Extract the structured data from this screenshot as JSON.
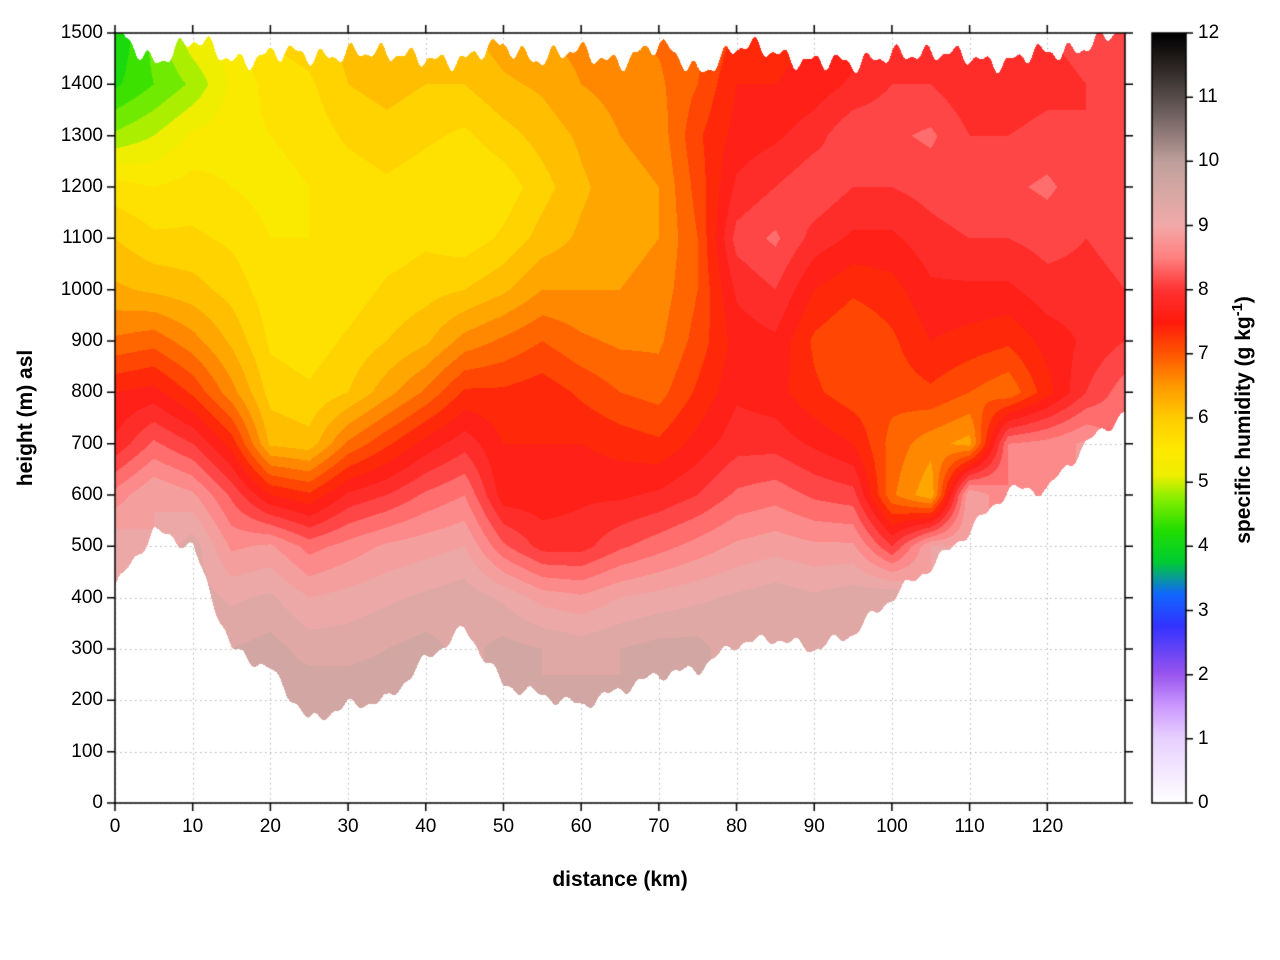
{
  "chart_data": {
    "type": "heatmap",
    "title": "",
    "xlabel": "distance (km)",
    "ylabel": "height (m) asl",
    "colorbar_label": "specific humidity (g kg^-1)",
    "colorbar_label_prefix": "specific humidity (g kg",
    "colorbar_label_sup": "-1",
    "colorbar_label_suffix": ")",
    "xlim": [
      0,
      130
    ],
    "ylim": [
      0,
      1500
    ],
    "zlim": [
      0,
      12
    ],
    "x_ticks": [
      0,
      10,
      20,
      30,
      40,
      50,
      60,
      70,
      80,
      90,
      100,
      110,
      120
    ],
    "y_ticks": [
      0,
      100,
      200,
      300,
      400,
      500,
      600,
      700,
      800,
      900,
      1000,
      1100,
      1200,
      1300,
      1400,
      1500
    ],
    "colorbar_ticks": [
      0,
      1,
      2,
      3,
      4,
      5,
      6,
      7,
      8,
      9,
      10,
      11,
      12
    ],
    "grid": true,
    "contour_interval": 0.25,
    "style": {
      "background": "#ffffff",
      "axis_color": "#000000",
      "grid_color": "#b5b5b5"
    },
    "palette": [
      {
        "v": 0,
        "c": "#ffffff"
      },
      {
        "v": 1,
        "c": "#e8d0ff"
      },
      {
        "v": 1.5,
        "c": "#cc99ff"
      },
      {
        "v": 2,
        "c": "#9955ee"
      },
      {
        "v": 2.75,
        "c": "#3333ff"
      },
      {
        "v": 3.25,
        "c": "#1166ff"
      },
      {
        "v": 3.75,
        "c": "#00cc33"
      },
      {
        "v": 4.25,
        "c": "#22dd00"
      },
      {
        "v": 4.75,
        "c": "#88ee00"
      },
      {
        "v": 5.1,
        "c": "#eeee00"
      },
      {
        "v": 5.5,
        "c": "#ffe800"
      },
      {
        "v": 6,
        "c": "#ffcc00"
      },
      {
        "v": 6.5,
        "c": "#ff9900"
      },
      {
        "v": 7,
        "c": "#ff5500"
      },
      {
        "v": 7.5,
        "c": "#ff1a0d"
      },
      {
        "v": 8,
        "c": "#ff3333"
      },
      {
        "v": 8.5,
        "c": "#ff8080"
      },
      {
        "v": 9,
        "c": "#f2a8a8"
      },
      {
        "v": 9.5,
        "c": "#d8a8a4"
      },
      {
        "v": 10,
        "c": "#bf9f9c"
      },
      {
        "v": 10.75,
        "c": "#6f605e"
      },
      {
        "v": 11.5,
        "c": "#2a2422"
      },
      {
        "v": 12,
        "c": "#000000"
      }
    ],
    "x": [
      0,
      5,
      10,
      15,
      20,
      25,
      30,
      35,
      40,
      45,
      50,
      55,
      60,
      65,
      70,
      75,
      80,
      85,
      90,
      95,
      100,
      105,
      110,
      115,
      120,
      125,
      130
    ],
    "heights": [
      0,
      100,
      200,
      300,
      400,
      500,
      600,
      700,
      800,
      900,
      1000,
      1100,
      1200,
      1300,
      1400,
      1500
    ],
    "terrain_height_m": [
      420,
      530,
      500,
      300,
      260,
      160,
      190,
      200,
      280,
      340,
      230,
      210,
      190,
      220,
      250,
      260,
      310,
      320,
      300,
      330,
      400,
      460,
      530,
      610,
      610,
      700,
      760
    ],
    "top_height_m": [
      1500,
      1450,
      1480,
      1450,
      1460,
      1450,
      1470,
      1450,
      1460,
      1440,
      1480,
      1450,
      1460,
      1450,
      1470,
      1430,
      1470,
      1460,
      1450,
      1430,
      1470,
      1450,
      1460,
      1440,
      1460,
      1480,
      1500
    ],
    "values": [
      [
        null,
        null,
        null,
        null,
        null,
        9.2,
        8.6,
        7.8,
        7.5,
        6.8,
        6.3,
        6.0,
        5.6,
        4.8,
        4.2,
        4.0
      ],
      [
        null,
        null,
        null,
        null,
        null,
        null,
        9.0,
        8.3,
        7.6,
        6.9,
        6.2,
        5.8,
        5.5,
        5.0,
        4.5,
        4.6
      ],
      [
        null,
        null,
        null,
        null,
        null,
        9.4,
        8.8,
        8.0,
        7.2,
        6.6,
        6.1,
        5.8,
        5.6,
        5.3,
        4.8,
        5.2
      ],
      [
        null,
        null,
        null,
        9.5,
        9.2,
        8.7,
        8.2,
        7.4,
        6.6,
        6.2,
        5.9,
        5.7,
        5.5,
        5.4,
        5.3,
        5.4
      ],
      [
        null,
        null,
        null,
        9.6,
        9.3,
        8.8,
        7.5,
        6.2,
        5.9,
        5.7,
        5.6,
        5.5,
        5.4,
        5.5,
        5.6,
        5.8
      ],
      [
        null,
        null,
        9.7,
        9.4,
        9.0,
        8.4,
        7.3,
        6.1,
        5.8,
        5.6,
        5.5,
        5.5,
        5.5,
        5.6,
        5.7,
        5.9
      ],
      [
        null,
        null,
        9.7,
        9.4,
        9.1,
        8.6,
        7.8,
        6.8,
        6.0,
        5.8,
        5.6,
        5.5,
        5.6,
        5.8,
        6.0,
        6.1
      ],
      [
        null,
        null,
        9.7,
        9.5,
        9.2,
        8.8,
        8.0,
        7.2,
        6.4,
        6.0,
        5.8,
        5.6,
        5.7,
        5.9,
        6.1,
        6.2
      ],
      [
        null,
        null,
        null,
        9.6,
        9.3,
        8.9,
        8.3,
        7.6,
        6.8,
        6.2,
        5.9,
        5.7,
        5.6,
        5.8,
        6.0,
        6.1
      ],
      [
        null,
        null,
        null,
        null,
        9.4,
        9.0,
        8.5,
        7.9,
        7.3,
        6.6,
        6.0,
        5.6,
        5.5,
        5.7,
        6.0,
        6.2
      ],
      [
        null,
        null,
        null,
        9.6,
        9.2,
        8.3,
        7.6,
        7.5,
        7.3,
        6.8,
        6.2,
        5.8,
        5.6,
        5.9,
        6.2,
        6.4
      ],
      [
        null,
        null,
        null,
        9.5,
        8.9,
        7.9,
        7.6,
        7.5,
        7.4,
        7.0,
        6.5,
        6.1,
        5.9,
        6.1,
        6.3,
        6.5
      ],
      [
        null,
        null,
        9.6,
        9.4,
        8.8,
        7.9,
        7.7,
        7.5,
        7.2,
        6.8,
        6.5,
        6.3,
        6.2,
        6.3,
        6.5,
        6.6
      ],
      [
        null,
        null,
        null,
        9.5,
        9.0,
        8.2,
        7.7,
        7.4,
        7.0,
        6.7,
        6.5,
        6.4,
        6.4,
        6.5,
        6.6,
        6.7
      ],
      [
        null,
        null,
        null,
        9.6,
        9.1,
        8.4,
        7.8,
        7.3,
        6.9,
        6.7,
        6.6,
        6.5,
        6.5,
        6.6,
        6.7,
        6.8
      ],
      [
        null,
        null,
        null,
        9.6,
        9.2,
        8.6,
        8.0,
        7.6,
        7.3,
        7.1,
        7.0,
        7.0,
        7.1,
        7.2,
        7.0,
        6.9
      ],
      [
        null,
        null,
        null,
        null,
        9.3,
        8.8,
        8.3,
        7.9,
        7.7,
        7.6,
        7.8,
        8.1,
        7.8,
        7.6,
        7.5,
        7.3
      ],
      [
        null,
        null,
        null,
        null,
        9.4,
        8.9,
        8.4,
        7.9,
        7.6,
        7.7,
        8.0,
        8.3,
        8.0,
        7.7,
        7.5,
        7.4
      ],
      [
        null,
        null,
        null,
        9.5,
        9.3,
        8.8,
        8.2,
        7.7,
        7.3,
        7.2,
        7.5,
        7.9,
        8.2,
        7.9,
        7.6,
        7.5
      ],
      [
        null,
        null,
        null,
        null,
        9.4,
        8.8,
        8.1,
        7.5,
        7.1,
        7.0,
        7.3,
        7.7,
        8.0,
        8.2,
        7.8,
        7.6
      ],
      [
        null,
        null,
        null,
        null,
        9.5,
        8.0,
        6.8,
        6.9,
        7.1,
        7.2,
        7.4,
        7.7,
        8.0,
        8.2,
        8.0,
        7.8
      ],
      [
        null,
        null,
        null,
        null,
        null,
        9.0,
        6.3,
        6.6,
        7.2,
        7.5,
        7.7,
        7.9,
        8.1,
        8.3,
        8.0,
        7.8
      ],
      [
        null,
        null,
        null,
        null,
        null,
        null,
        9.0,
        6.4,
        7.0,
        7.4,
        7.7,
        8.0,
        8.2,
        8.0,
        7.8,
        7.7
      ],
      [
        null,
        null,
        null,
        null,
        null,
        null,
        null,
        8.5,
        6.8,
        7.3,
        7.7,
        8.0,
        8.2,
        8.0,
        7.8,
        7.9
      ],
      [
        null,
        null,
        null,
        null,
        null,
        null,
        null,
        8.6,
        7.4,
        7.6,
        7.9,
        8.1,
        8.3,
        8.1,
        7.9,
        8.0
      ],
      [
        null,
        null,
        null,
        null,
        null,
        null,
        null,
        8.8,
        8.0,
        7.8,
        7.9,
        8.0,
        8.1,
        8.0,
        8.0,
        8.1
      ],
      [
        null,
        null,
        null,
        null,
        null,
        null,
        null,
        null,
        8.4,
        8.0,
        8.0,
        8.1,
        8.2,
        8.1,
        8.1,
        8.2
      ]
    ]
  }
}
